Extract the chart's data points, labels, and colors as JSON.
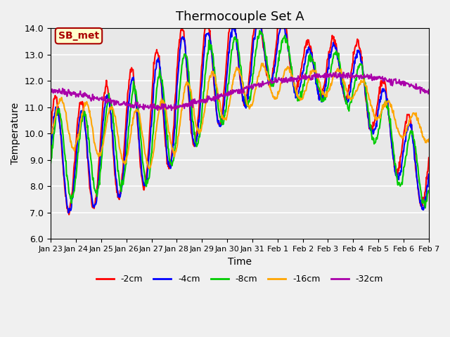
{
  "title": "Thermocouple Set A",
  "xlabel": "Time",
  "ylabel": "Temperature",
  "ylim": [
    6.0,
    14.0
  ],
  "yticks": [
    6.0,
    7.0,
    8.0,
    9.0,
    10.0,
    11.0,
    12.0,
    13.0,
    14.0
  ],
  "xtick_labels": [
    "Jan 23",
    "Jan 24",
    "Jan 25",
    "Jan 26",
    "Jan 27",
    "Jan 28",
    "Jan 29",
    "Jan 30",
    "Jan 31",
    "Feb 1",
    "Feb 2",
    "Feb 3",
    "Feb 4",
    "Feb 5",
    "Feb 6",
    "Feb 7"
  ],
  "legend_labels": [
    "-2cm",
    "-4cm",
    "-8cm",
    "-16cm",
    "-32cm"
  ],
  "legend_colors": [
    "#ff0000",
    "#0000ff",
    "#00cc00",
    "#ffa500",
    "#aa00aa"
  ],
  "annotation_text": "SB_met",
  "annotation_color": "#aa0000",
  "annotation_bg": "#ffffcc",
  "annotation_border": "#aa0000",
  "background_color": "#e8e8e8",
  "fig_facecolor": "#f0f0f0",
  "line_width": 1.5,
  "title_fontsize": 13,
  "axis_fontsize": 10,
  "n_days": 16,
  "n_pts": 768
}
